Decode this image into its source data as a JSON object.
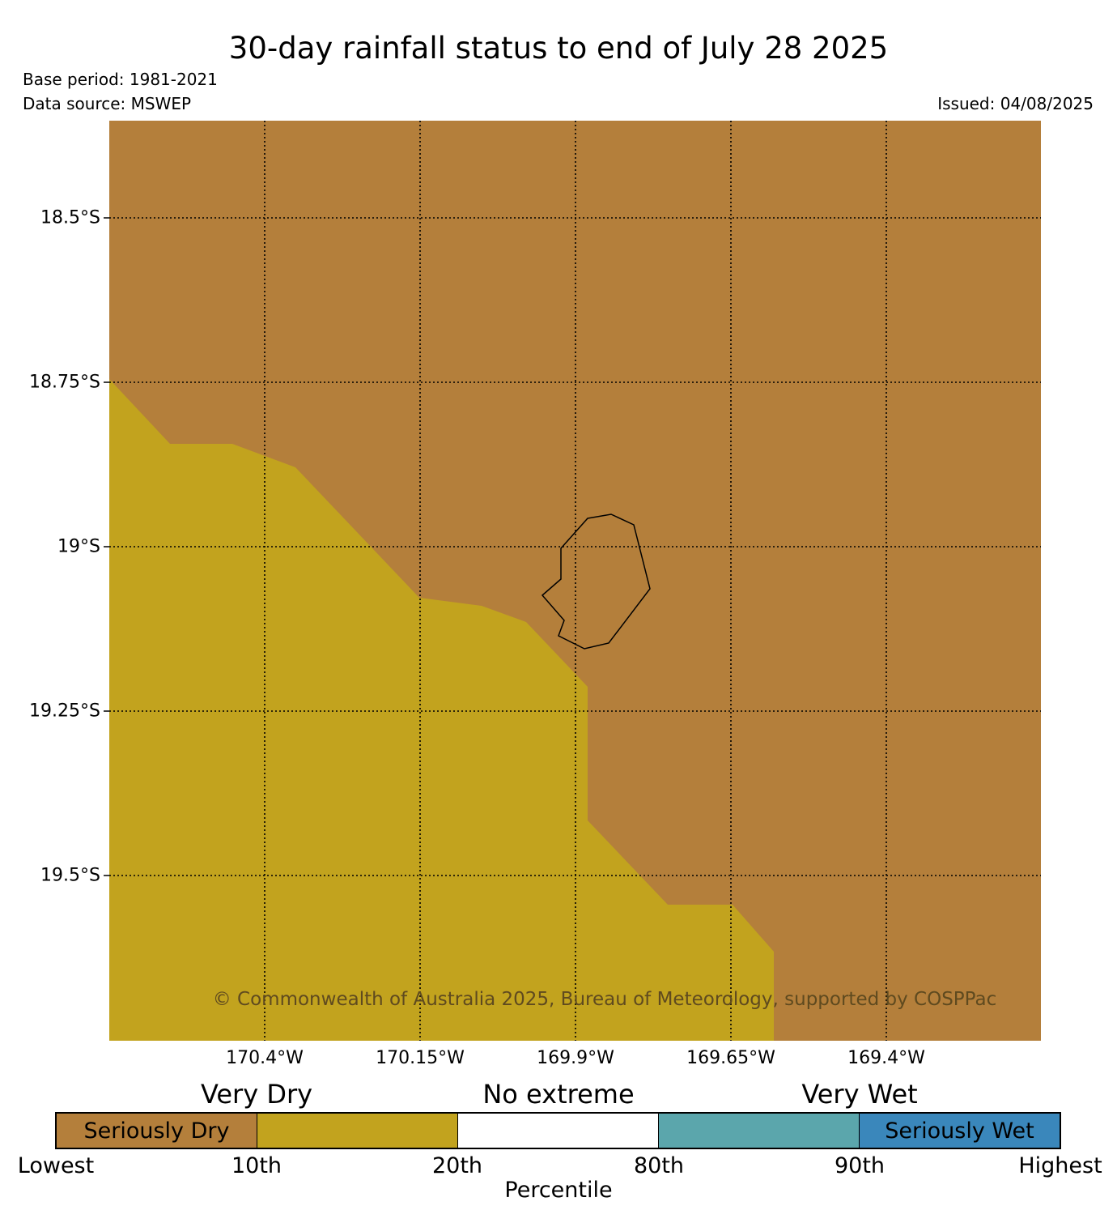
{
  "header": {
    "title": "30-day rainfall status to end of July 28 2025",
    "base_period": "Base period: 1981-2021",
    "data_source": "Data source: MSWEP",
    "issued": "Issued: 04/08/2025"
  },
  "map": {
    "lat_labels": [
      "18.5°S",
      "18.75°S",
      "19°S",
      "19.25°S",
      "19.5°S"
    ],
    "lon_labels": [
      "170.4°W",
      "170.15°W",
      "169.9°W",
      "169.65°W",
      "169.4°W"
    ],
    "copyright": "© Commonwealth of Australia 2025, Bureau of Meteorology, supported by COSPPac",
    "colors": {
      "seriously_dry": "#B47F3B",
      "very_dry": "#C2A31E",
      "copyright_text": "#5F4A1F"
    }
  },
  "legend": {
    "categories": [
      "Very Dry",
      "No extreme",
      "Very Wet"
    ],
    "segments": [
      {
        "label": "Seriously Dry",
        "color": "#B47F3B"
      },
      {
        "label": "",
        "color": "#C2A31E"
      },
      {
        "label": "",
        "color": "#FFFFFF"
      },
      {
        "label": "",
        "color": "#5BA6AC"
      },
      {
        "label": "Seriously Wet",
        "color": "#3A87BB"
      }
    ],
    "ticks": [
      "Lowest",
      "10th",
      "20th",
      "80th",
      "90th",
      "Highest"
    ],
    "axis_label": "Percentile"
  }
}
